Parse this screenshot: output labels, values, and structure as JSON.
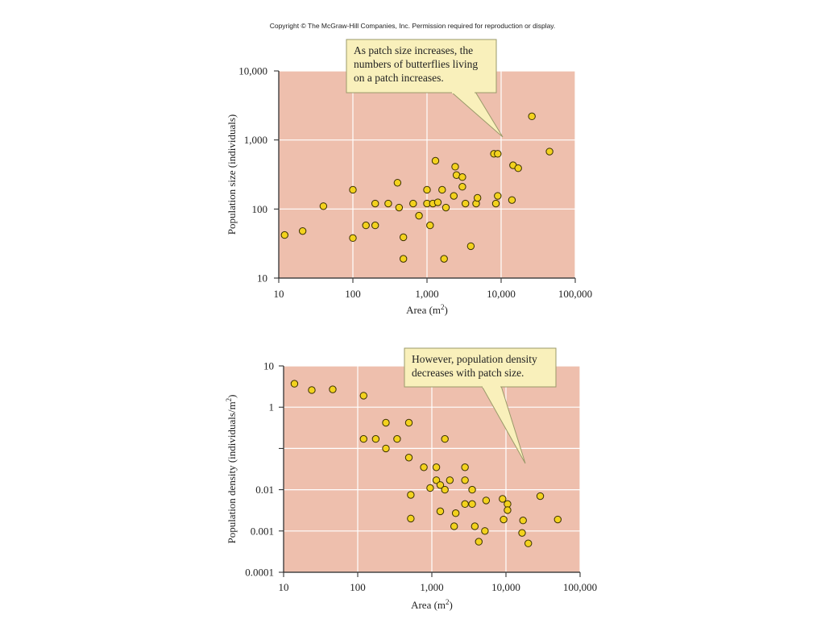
{
  "copyright": "Copyright © The McGraw-Hill Companies, Inc. Permission required for reproduction or display.",
  "colors": {
    "plot_bg": "#eebfad",
    "grid": "#ffffff",
    "point_fill": "#f3d21e",
    "point_stroke": "#3a3000",
    "callout_bg": "#f9f0bb",
    "callout_border": "#9a9a6a"
  },
  "chart_data": [
    {
      "type": "scatter",
      "xscale": "log",
      "yscale": "log",
      "xlim": [
        10,
        100000
      ],
      "ylim": [
        10,
        10000
      ],
      "xticks": [
        10,
        100,
        1000,
        10000,
        100000
      ],
      "xtick_labels": [
        "10",
        "100",
        "1,000",
        "10,000",
        "100,000"
      ],
      "yticks": [
        10,
        100,
        1000,
        10000
      ],
      "ytick_labels": [
        "10",
        "100",
        "1,000",
        "10,000"
      ],
      "xlabel": "Area (m",
      "xlabel_sup": "2",
      "xlabel_end": ")",
      "ylabel": "Population size (individuals)",
      "grid": true,
      "callout": {
        "lines": [
          "As patch size increases, the",
          "numbers of butterflies living",
          "on a patch increases."
        ]
      },
      "points": [
        {
          "x": 12,
          "y": 42
        },
        {
          "x": 21,
          "y": 48
        },
        {
          "x": 40,
          "y": 110
        },
        {
          "x": 100,
          "y": 190
        },
        {
          "x": 100,
          "y": 38
        },
        {
          "x": 150,
          "y": 58
        },
        {
          "x": 200,
          "y": 120
        },
        {
          "x": 200,
          "y": 58
        },
        {
          "x": 300,
          "y": 120
        },
        {
          "x": 400,
          "y": 240
        },
        {
          "x": 420,
          "y": 105
        },
        {
          "x": 480,
          "y": 39
        },
        {
          "x": 480,
          "y": 19
        },
        {
          "x": 650,
          "y": 120
        },
        {
          "x": 780,
          "y": 80
        },
        {
          "x": 1000,
          "y": 120
        },
        {
          "x": 1000,
          "y": 190
        },
        {
          "x": 1100,
          "y": 58
        },
        {
          "x": 1200,
          "y": 120
        },
        {
          "x": 1300,
          "y": 500
        },
        {
          "x": 1400,
          "y": 125
        },
        {
          "x": 1600,
          "y": 190
        },
        {
          "x": 1700,
          "y": 19
        },
        {
          "x": 1800,
          "y": 105
        },
        {
          "x": 2300,
          "y": 155
        },
        {
          "x": 2400,
          "y": 410
        },
        {
          "x": 2500,
          "y": 310
        },
        {
          "x": 3000,
          "y": 210
        },
        {
          "x": 3000,
          "y": 290
        },
        {
          "x": 3300,
          "y": 120
        },
        {
          "x": 3900,
          "y": 29
        },
        {
          "x": 4600,
          "y": 120
        },
        {
          "x": 4800,
          "y": 145
        },
        {
          "x": 8000,
          "y": 630
        },
        {
          "x": 8500,
          "y": 120
        },
        {
          "x": 9000,
          "y": 630
        },
        {
          "x": 9000,
          "y": 155
        },
        {
          "x": 14000,
          "y": 135
        },
        {
          "x": 14500,
          "y": 430
        },
        {
          "x": 17000,
          "y": 390
        },
        {
          "x": 26000,
          "y": 2200
        },
        {
          "x": 45000,
          "y": 680
        }
      ]
    },
    {
      "type": "scatter",
      "xscale": "log",
      "yscale": "log",
      "xlim": [
        10,
        100000
      ],
      "ylim": [
        0.0001,
        10
      ],
      "xticks": [
        10,
        100,
        1000,
        10000,
        100000
      ],
      "xtick_labels": [
        "10",
        "100",
        "1,000",
        "10,000",
        "100,000"
      ],
      "yticks": [
        0.0001,
        0.001,
        0.01,
        1,
        10
      ],
      "ytick_labels": [
        "0.0001",
        "0.001",
        "0.01",
        "1",
        "10"
      ],
      "xlabel": "Area (m",
      "xlabel_sup": "2",
      "xlabel_end": ")",
      "ylabel": "Population density (individuals/m",
      "ylabel_sup": "2",
      "ylabel_end": ")",
      "grid": true,
      "callout": {
        "lines": [
          "However, population density",
          "decreases with patch size."
        ]
      },
      "points": [
        {
          "x": 14,
          "y": 3.7
        },
        {
          "x": 24,
          "y": 2.6
        },
        {
          "x": 46,
          "y": 2.7
        },
        {
          "x": 120,
          "y": 1.9
        },
        {
          "x": 120,
          "y": 0.17
        },
        {
          "x": 175,
          "y": 0.17
        },
        {
          "x": 240,
          "y": 0.42
        },
        {
          "x": 240,
          "y": 0.1
        },
        {
          "x": 340,
          "y": 0.17
        },
        {
          "x": 490,
          "y": 0.42
        },
        {
          "x": 490,
          "y": 0.06
        },
        {
          "x": 520,
          "y": 0.0075
        },
        {
          "x": 520,
          "y": 0.002
        },
        {
          "x": 780,
          "y": 0.035
        },
        {
          "x": 950,
          "y": 0.011
        },
        {
          "x": 1150,
          "y": 0.035
        },
        {
          "x": 1150,
          "y": 0.017
        },
        {
          "x": 1300,
          "y": 0.013
        },
        {
          "x": 1300,
          "y": 0.003
        },
        {
          "x": 1500,
          "y": 0.17
        },
        {
          "x": 1500,
          "y": 0.01
        },
        {
          "x": 1750,
          "y": 0.017
        },
        {
          "x": 2000,
          "y": 0.0013
        },
        {
          "x": 2100,
          "y": 0.0027
        },
        {
          "x": 2800,
          "y": 0.035
        },
        {
          "x": 2800,
          "y": 0.017
        },
        {
          "x": 2800,
          "y": 0.0045
        },
        {
          "x": 3500,
          "y": 0.01
        },
        {
          "x": 3500,
          "y": 0.0045
        },
        {
          "x": 3800,
          "y": 0.0013
        },
        {
          "x": 4300,
          "y": 0.00055
        },
        {
          "x": 5200,
          "y": 0.001
        },
        {
          "x": 5400,
          "y": 0.0055
        },
        {
          "x": 9000,
          "y": 0.006
        },
        {
          "x": 9300,
          "y": 0.0019
        },
        {
          "x": 10500,
          "y": 0.0045
        },
        {
          "x": 10500,
          "y": 0.0032
        },
        {
          "x": 16500,
          "y": 0.0009
        },
        {
          "x": 17000,
          "y": 0.0018
        },
        {
          "x": 20000,
          "y": 0.0005
        },
        {
          "x": 29000,
          "y": 0.007
        },
        {
          "x": 50000,
          "y": 0.0019
        }
      ]
    }
  ]
}
